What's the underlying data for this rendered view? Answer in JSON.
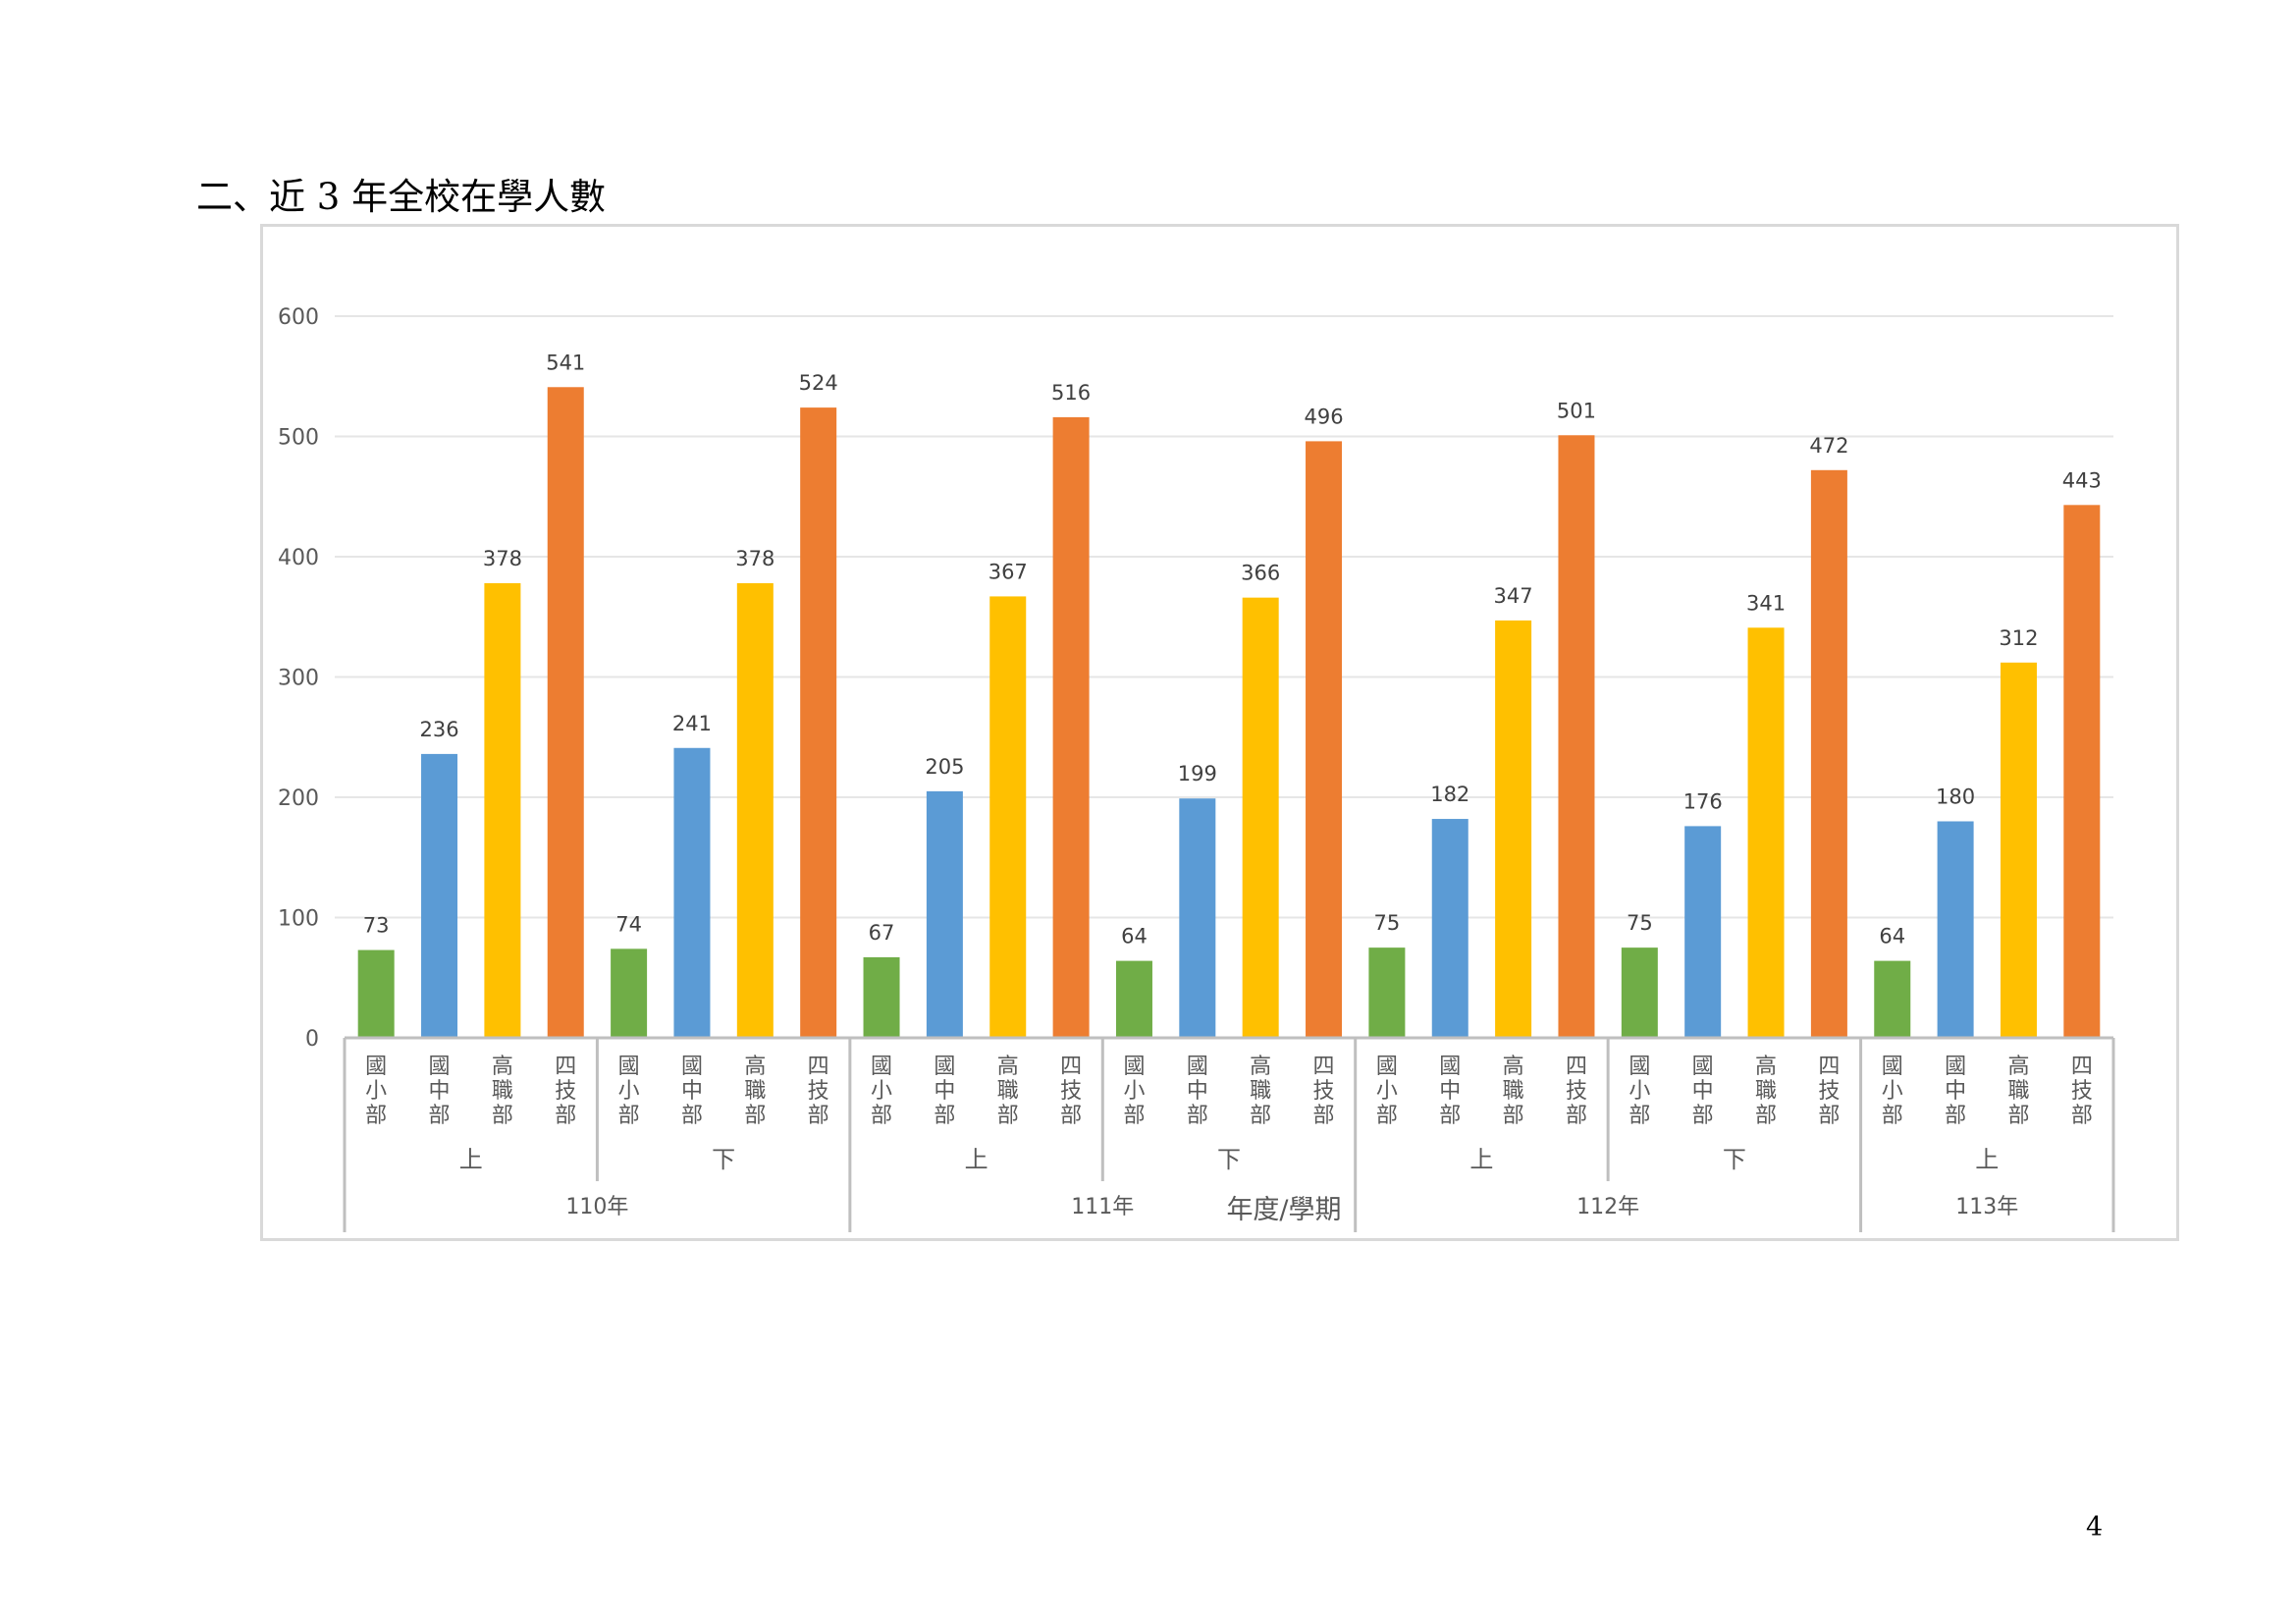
{
  "page": {
    "heading": "二、近 3 年全校在學人數",
    "page_number": "4"
  },
  "chart_data": {
    "type": "bar",
    "title": "",
    "xlabel": "年度/學期",
    "ylabel": "",
    "ylim": [
      0,
      600
    ],
    "yticks": [
      0,
      100,
      200,
      300,
      400,
      500,
      600
    ],
    "grid": true,
    "legend": "none",
    "category_labels": [
      "國小部",
      "國中部",
      "高職部",
      "四技部"
    ],
    "colors": {
      "國小部": "#70ad47",
      "國中部": "#5b9bd5",
      "高職部": "#ffc000",
      "四技部": "#ed7d31"
    },
    "groups": [
      {
        "year": "110年",
        "term": "上",
        "values": [
          73,
          236,
          378,
          541
        ]
      },
      {
        "year": "110年",
        "term": "下",
        "values": [
          74,
          241,
          378,
          524
        ]
      },
      {
        "year": "111年",
        "term": "上",
        "values": [
          67,
          205,
          367,
          516
        ]
      },
      {
        "year": "111年",
        "term": "下",
        "values": [
          64,
          199,
          366,
          496
        ]
      },
      {
        "year": "112年",
        "term": "上",
        "values": [
          75,
          182,
          347,
          501
        ]
      },
      {
        "year": "112年",
        "term": "下",
        "values": [
          75,
          176,
          341,
          472
        ]
      },
      {
        "year": "113年",
        "term": "上",
        "values": [
          64,
          180,
          312,
          443
        ]
      }
    ],
    "years": [
      "110年",
      "111年",
      "112年",
      "113年"
    ]
  }
}
